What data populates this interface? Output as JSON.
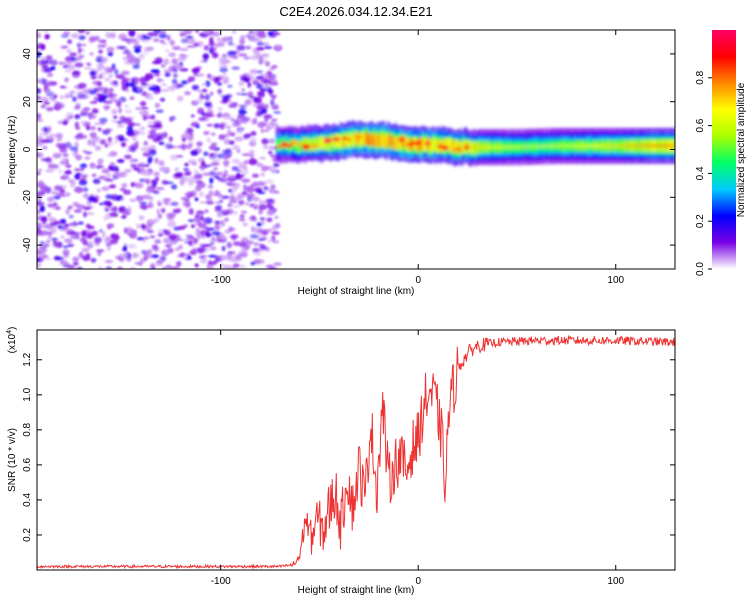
{
  "figure_title": "C2E4.2026.034.12.34.E21",
  "chart_data": [
    {
      "type": "heatmap",
      "title": "C2E4.2026.034.12.34.E21",
      "xlabel": "Height of straight line (km)",
      "ylabel": "Frequency (Hz)",
      "xlim": [
        -193,
        130
      ],
      "ylim": [
        -50,
        50
      ],
      "xticks": [
        -100,
        0,
        100
      ],
      "xtick_labels": [
        "-100",
        "0",
        "100"
      ],
      "yticks": [
        -40,
        -20,
        0,
        20,
        40
      ],
      "ytick_labels": [
        "-40",
        "-20",
        "0",
        "20",
        "40"
      ],
      "noise_region_x": [
        -193,
        -72
      ],
      "signal_band": {
        "x": [
          -72,
          -60,
          -50,
          -40,
          -30,
          -20,
          -10,
          0,
          10,
          20,
          30,
          50,
          70,
          100,
          130
        ],
        "center_hz": [
          2,
          2,
          2.5,
          3.5,
          4.5,
          4,
          3,
          2,
          2,
          1,
          1,
          1,
          1.5,
          1.5,
          1.5
        ],
        "peak_amplitude": [
          0.6,
          0.7,
          0.8,
          0.9,
          0.95,
          1.0,
          0.95,
          0.95,
          0.9,
          0.9,
          0.7,
          0.6,
          0.6,
          0.7,
          0.85
        ]
      },
      "colorbar": {
        "label": "Normalized spectral amplitude",
        "range": [
          0,
          1
        ],
        "ticks": [
          0.0,
          0.2,
          0.4,
          0.6,
          0.8
        ],
        "tick_labels": [
          "0.0",
          "0.2",
          "0.4",
          "0.6",
          "0.8"
        ],
        "colors": [
          "#ffffff",
          "#7a00e6",
          "#0000ff",
          "#00ccff",
          "#00ff66",
          "#aaff00",
          "#ffff00",
          "#ff8800",
          "#ff0000",
          "#ff0066"
        ]
      }
    },
    {
      "type": "line",
      "xlabel": "Height of straight line (km)",
      "ylabel": "SNR (10 * v/v)",
      "y_multiplier_label": "(x10",
      "y_multiplier_exp": "4",
      "y_multiplier_close": ")",
      "xlim": [
        -193,
        130
      ],
      "ylim": [
        0,
        1.37
      ],
      "xticks": [
        -100,
        0,
        100
      ],
      "xtick_labels": [
        "-100",
        "0",
        "100"
      ],
      "yticks": [
        0.2,
        0.4,
        0.6,
        0.8,
        1.0,
        1.2
      ],
      "ytick_labels": [
        "0.2",
        "0.4",
        "0.6",
        "0.8",
        "1.0",
        "1.2"
      ],
      "series": [
        {
          "name": "SNR",
          "color": "#ee3333",
          "x": [
            -193,
            -70,
            -63,
            -60,
            -57,
            -54,
            -51,
            -48,
            -45,
            -42,
            -39,
            -36,
            -33,
            -30,
            -27,
            -24,
            -21,
            -18,
            -15,
            -12,
            -9,
            -6,
            -3,
            0,
            3,
            6,
            9,
            12,
            14,
            15,
            17,
            20,
            23,
            26,
            30,
            40,
            60,
            100,
            130
          ],
          "y": [
            0.02,
            0.02,
            0.03,
            0.08,
            0.3,
            0.18,
            0.3,
            0.22,
            0.35,
            0.45,
            0.25,
            0.55,
            0.35,
            0.6,
            0.4,
            0.85,
            0.45,
            0.95,
            0.5,
            0.6,
            0.65,
            0.55,
            0.7,
            0.75,
            0.95,
            1.02,
            0.95,
            0.75,
            0.45,
            0.85,
            1.0,
            1.15,
            1.2,
            1.25,
            1.28,
            1.3,
            1.31,
            1.31,
            1.3
          ]
        }
      ]
    }
  ]
}
